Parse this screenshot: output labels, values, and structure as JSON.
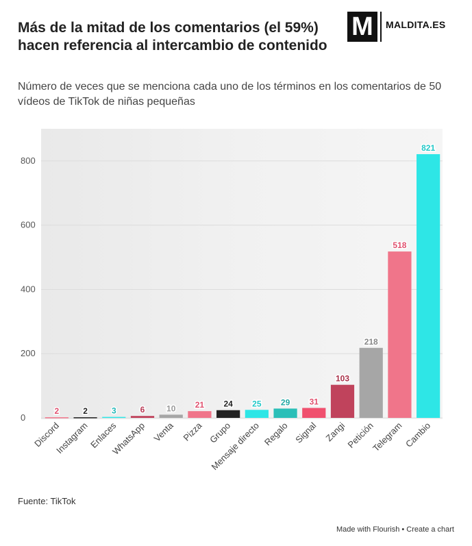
{
  "header": {
    "title": "Más de la mitad de los comentarios (el 59%) hacen referencia al intercambio de contenido",
    "subtitle": "Número de veces que se menciona cada uno de los términos en los comentarios de 50 vídeos de TikTok de niñas pequeñas",
    "logo_letter": "M",
    "logo_text": "MALDITA.ES"
  },
  "chart_data": {
    "type": "bar",
    "categories": [
      "Discord",
      "Instagram",
      "Enlaces",
      "WhatsApp",
      "Venta",
      "Pizza",
      "Grupo",
      "Mensaje directo",
      "Regalo",
      "Signal",
      "Zangi",
      "Petición",
      "Telegram",
      "Cambio"
    ],
    "values": [
      2,
      2,
      3,
      6,
      10,
      21,
      24,
      25,
      29,
      31,
      103,
      218,
      518,
      821
    ],
    "colors": [
      "#f0758a",
      "#222222",
      "#2ee6e6",
      "#c0435c",
      "#a6a6a6",
      "#f0758a",
      "#222222",
      "#2ee6e6",
      "#2bbfb8",
      "#f0506e",
      "#c0435c",
      "#a6a6a6",
      "#f0758a",
      "#2ee6e6"
    ],
    "label_colors": [
      "#e0506e",
      "#222222",
      "#22b8b8",
      "#b83a55",
      "#999999",
      "#e0506e",
      "#222222",
      "#22c8c8",
      "#22a8a4",
      "#e0506e",
      "#a83048",
      "#888888",
      "#e0506e",
      "#22c8c8"
    ],
    "ylim": [
      0,
      900
    ],
    "yticks": [
      0,
      200,
      400,
      600,
      800
    ],
    "grid": true
  },
  "footer": {
    "source": "Fuente: TikTok",
    "credit": "Made with Flourish • Create a chart"
  }
}
